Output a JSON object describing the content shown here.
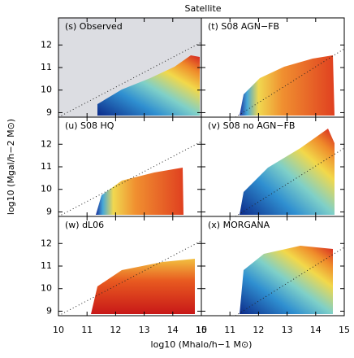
{
  "figure": {
    "title": "Satellite",
    "x_label": "log10 (Mhalo/h−1 M⊙)",
    "y_label": "log10 (Mgal/h−2 M⊙)"
  },
  "chart_data": [
    {
      "type": "heatmap",
      "title": "(s) Observed",
      "xlim": [
        10,
        15
      ],
      "ylim": [
        8.8,
        13.2
      ],
      "xticks": [
        10,
        11,
        12,
        13,
        14,
        15
      ],
      "yticks": [
        9,
        10,
        11,
        12
      ]
    },
    {
      "type": "heatmap",
      "title": "(t) S08 AGN−FB",
      "xlim": [
        10,
        15
      ],
      "ylim": [
        8.8,
        13.2
      ],
      "xticks": [
        10,
        11,
        12,
        13,
        14,
        15
      ],
      "yticks": [
        9,
        10,
        11,
        12
      ]
    },
    {
      "type": "heatmap",
      "title": "(u) S08 HQ",
      "xlim": [
        10,
        15
      ],
      "ylim": [
        8.8,
        13.2
      ],
      "xticks": [
        10,
        11,
        12,
        13,
        14,
        15
      ],
      "yticks": [
        9,
        10,
        11,
        12
      ]
    },
    {
      "type": "heatmap",
      "title": "(v) S08 no AGN−FB",
      "xlim": [
        10,
        15
      ],
      "ylim": [
        8.8,
        13.2
      ],
      "xticks": [
        10,
        11,
        12,
        13,
        14,
        15
      ],
      "yticks": [
        9,
        10,
        11,
        12
      ]
    },
    {
      "type": "heatmap",
      "title": "(w) dL06",
      "xlim": [
        10,
        15
      ],
      "ylim": [
        8.8,
        13.2
      ],
      "xticks": [
        10,
        11,
        12,
        13,
        14,
        15
      ],
      "yticks": [
        9,
        10,
        11,
        12
      ]
    },
    {
      "type": "heatmap",
      "title": "(x) MORGANA",
      "xlim": [
        10,
        15
      ],
      "ylim": [
        8.8,
        13.2
      ],
      "xticks": [
        10,
        11,
        12,
        13,
        14,
        15
      ],
      "yticks": [
        9,
        10,
        11,
        12
      ]
    }
  ]
}
